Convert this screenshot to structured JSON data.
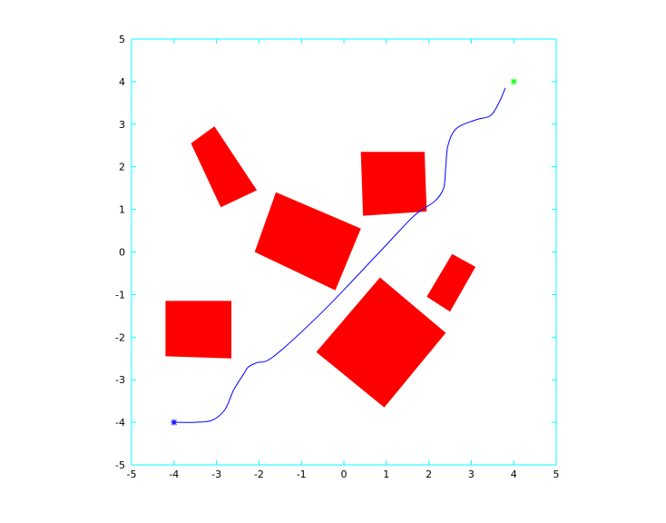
{
  "chart_data": {
    "type": "scatter",
    "title": "",
    "xlabel": "",
    "ylabel": "",
    "xlim": [
      -5,
      5
    ],
    "ylim": [
      -5,
      5
    ],
    "xticks": [
      -5,
      -4,
      -3,
      -2,
      -1,
      0,
      1,
      2,
      3,
      4,
      5
    ],
    "yticks": [
      -5,
      -4,
      -3,
      -2,
      -1,
      0,
      1,
      2,
      3,
      4,
      5
    ],
    "axis_color": "#00ffff",
    "grid": false,
    "obstacles": {
      "color": "#ff0000",
      "polygons": [
        [
          [
            -3.05,
            2.95
          ],
          [
            -2.05,
            1.45
          ],
          [
            -2.9,
            1.05
          ],
          [
            -3.6,
            2.55
          ]
        ],
        [
          [
            -2.1,
            0.0
          ],
          [
            -1.6,
            1.4
          ],
          [
            0.4,
            0.55
          ],
          [
            -0.2,
            -0.9
          ]
        ],
        [
          [
            -4.2,
            -1.15
          ],
          [
            -2.65,
            -1.15
          ],
          [
            -2.65,
            -2.5
          ],
          [
            -4.2,
            -2.45
          ]
        ],
        [
          [
            0.4,
            2.35
          ],
          [
            1.9,
            2.35
          ],
          [
            1.95,
            0.95
          ],
          [
            0.45,
            0.85
          ]
        ],
        [
          [
            0.85,
            -0.6
          ],
          [
            2.4,
            -1.9
          ],
          [
            0.95,
            -3.65
          ],
          [
            -0.65,
            -2.35
          ]
        ],
        [
          [
            2.55,
            -0.05
          ],
          [
            3.1,
            -0.35
          ],
          [
            2.5,
            -1.4
          ],
          [
            1.95,
            -1.05
          ]
        ]
      ]
    },
    "path": {
      "color": "#0000ff",
      "x": [
        -4.0,
        -3.5,
        -3.1,
        -2.8,
        -2.6,
        -2.35,
        -2.25,
        -2.05,
        -1.65,
        -0.5,
        0.7,
        1.55,
        1.85,
        2.15,
        2.35,
        2.4,
        2.45,
        2.65,
        3.1,
        3.45,
        3.65,
        3.8
      ],
      "y": [
        -4.0,
        -4.0,
        -3.95,
        -3.7,
        -3.25,
        -2.85,
        -2.7,
        -2.6,
        -2.45,
        -1.4,
        -0.15,
        0.75,
        1.0,
        1.2,
        1.5,
        2.0,
        2.5,
        2.9,
        3.1,
        3.2,
        3.5,
        3.85
      ]
    },
    "start": {
      "x": -4,
      "y": -4,
      "color": "#0000ff",
      "marker": "*"
    },
    "goal": {
      "x": 4,
      "y": 4,
      "color": "#00ff00",
      "marker": "*"
    }
  }
}
